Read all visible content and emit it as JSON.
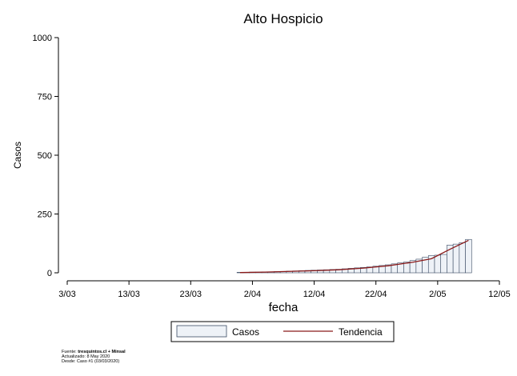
{
  "chart_data": {
    "type": "bar",
    "title": "Alto Hospicio",
    "xlabel": "fecha",
    "ylabel": "Casos",
    "ylim": [
      0,
      1000
    ],
    "yticks": [
      "0",
      "250",
      "500",
      "750",
      "1000"
    ],
    "xtick_labels": [
      "3/03",
      "13/03",
      "23/03",
      "2/04",
      "12/04",
      "22/04",
      "2/05",
      "12/05"
    ],
    "x_start_date": "2020-03-03",
    "x_end_date": "2020-05-12",
    "grid": false,
    "legend_placement": "bottom",
    "series": [
      {
        "name": "Casos",
        "kind": "bar",
        "fill": "#eef2f7",
        "stroke": "#3a4a63",
        "dates": [
          "2020-03-31",
          "2020-04-01",
          "2020-04-02",
          "2020-04-03",
          "2020-04-04",
          "2020-04-05",
          "2020-04-06",
          "2020-04-07",
          "2020-04-08",
          "2020-04-09",
          "2020-04-10",
          "2020-04-11",
          "2020-04-12",
          "2020-04-13",
          "2020-04-14",
          "2020-04-15",
          "2020-04-16",
          "2020-04-17",
          "2020-04-18",
          "2020-04-19",
          "2020-04-20",
          "2020-04-21",
          "2020-04-22",
          "2020-04-23",
          "2020-04-24",
          "2020-04-25",
          "2020-04-26",
          "2020-04-27",
          "2020-04-28",
          "2020-04-29",
          "2020-04-30",
          "2020-05-01",
          "2020-05-02",
          "2020-05-03",
          "2020-05-04",
          "2020-05-05",
          "2020-05-06",
          "2020-05-07"
        ],
        "values": [
          2,
          2,
          3,
          3,
          4,
          4,
          5,
          6,
          7,
          8,
          9,
          10,
          11,
          12,
          13,
          14,
          15,
          17,
          19,
          21,
          23,
          25,
          28,
          31,
          34,
          38,
          42,
          46,
          52,
          58,
          66,
          73,
          75,
          78,
          118,
          122,
          128,
          142
        ]
      },
      {
        "name": "Tendencia",
        "kind": "line",
        "color": "#8b1a1a",
        "dates": [
          "2020-03-31",
          "2020-04-04",
          "2020-04-08",
          "2020-04-12",
          "2020-04-16",
          "2020-04-20",
          "2020-04-24",
          "2020-04-28",
          "2020-05-01",
          "2020-05-04",
          "2020-05-07"
        ],
        "values": [
          1,
          3,
          6,
          9,
          13,
          20,
          30,
          45,
          60,
          100,
          138
        ]
      }
    ]
  },
  "footnote": {
    "source_prefix": "Fuente: ",
    "source_bold": "tresquintos.cl + Minsal",
    "updated": "Actualizado: 8 May 2020",
    "since": "Desde: Caso #1  (03/03/2020)"
  }
}
